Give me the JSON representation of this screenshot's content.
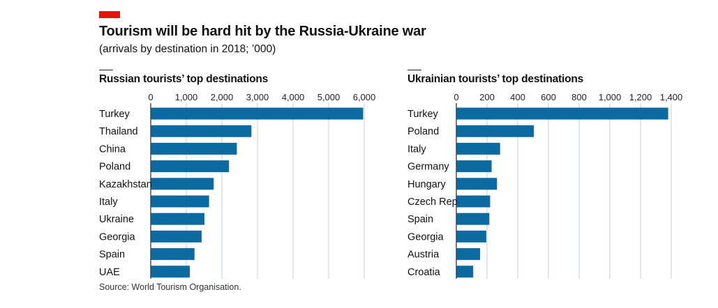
{
  "header": {
    "title": "Tourism will be hard hit by the Russia-Ukraine war",
    "subtitle": "(arrivals by destination in 2018; ’000)"
  },
  "source": "Source: World Tourism Organisation.",
  "colors": {
    "bar": "#0a6aa1",
    "accent": "#e3120b",
    "grid": "#b8d2dd"
  },
  "chart_data": [
    {
      "type": "bar",
      "orientation": "horizontal",
      "title": "Russian tourists’ top destinations",
      "categories": [
        "Turkey",
        "Thailand",
        "China",
        "Poland",
        "Kazakhstan",
        "Italy",
        "Ukraine",
        "Georgia",
        "Spain",
        "UAE"
      ],
      "values": [
        5970,
        2830,
        2420,
        2200,
        1770,
        1640,
        1510,
        1430,
        1230,
        1100
      ],
      "xlim": [
        0,
        6000
      ],
      "ticks": [
        0,
        1000,
        2000,
        3000,
        4000,
        5000,
        6000
      ],
      "tick_labels": [
        "0",
        "1,000",
        "2,000",
        "3,000",
        "4,000",
        "5,000",
        "6,000"
      ],
      "xlabel": "",
      "ylabel": "",
      "grid": true
    },
    {
      "type": "bar",
      "orientation": "horizontal",
      "title": "Ukrainian tourists’ top destinations",
      "categories": [
        "Turkey",
        "Poland",
        "Italy",
        "Germany",
        "Hungary",
        "Czech Rep",
        "Spain",
        "Georgia",
        "Austria",
        "Croatia"
      ],
      "values": [
        1380,
        505,
        285,
        230,
        265,
        220,
        215,
        195,
        155,
        110
      ],
      "xlim": [
        0,
        1400
      ],
      "ticks": [
        0,
        200,
        400,
        600,
        800,
        1000,
        1200,
        1400
      ],
      "tick_labels": [
        "0",
        "200",
        "400",
        "600",
        "800",
        "1,000",
        "1,200",
        "1,400"
      ],
      "xlabel": "",
      "ylabel": "",
      "grid": true
    }
  ]
}
